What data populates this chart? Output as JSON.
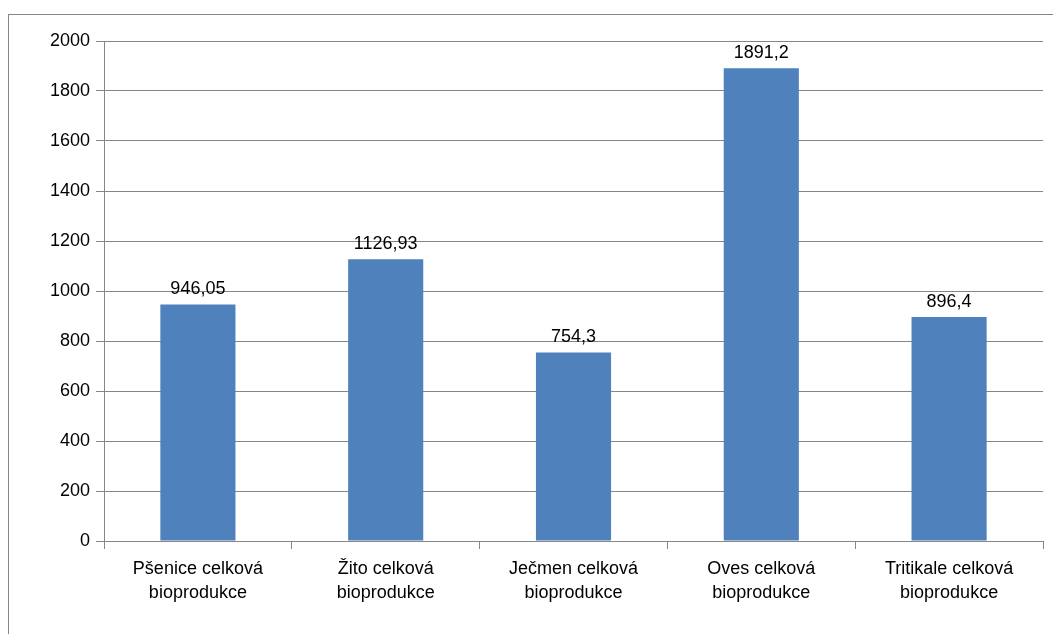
{
  "chart_data": {
    "type": "bar",
    "categories": [
      "Pšenice celková bioprodukce",
      "Žito celková bioprodukce",
      "Ječmen celková bioprodukce",
      "Oves celková bioprodukce",
      "Tritikale celková bioprodukce"
    ],
    "values": [
      946.05,
      1126.93,
      754.3,
      1891.2,
      896.4
    ],
    "color": "#4f81bd",
    "value_labels": [
      "946,05",
      "1126,93",
      "754,3",
      "1891,2",
      "896,4"
    ],
    "ylim": [
      0,
      2000
    ],
    "yticks": [
      0,
      200,
      400,
      600,
      800,
      1000,
      1200,
      1400,
      1600,
      1800,
      2000
    ],
    "grid": "y"
  }
}
